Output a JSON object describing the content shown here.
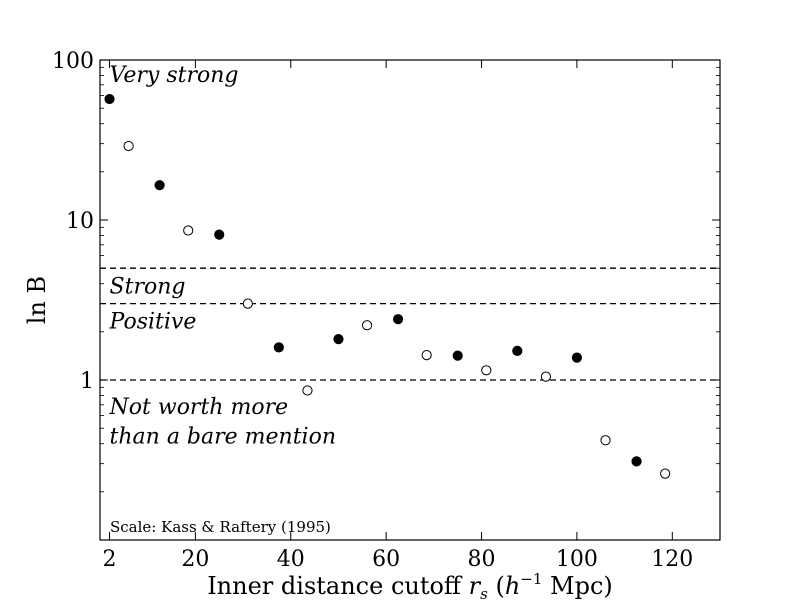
{
  "chart_data": {
    "type": "scatter",
    "title": "",
    "xlabel": "Inner distance cutoff r_s (h^-1 Mpc)",
    "xlabel_parts": {
      "prefix": "Inner distance cutoff ",
      "var": "r",
      "var_sub": "s",
      "paren_open": " (",
      "h": "h",
      "h_exp": "−1",
      "unit": " Mpc)"
    },
    "ylabel": "ln B",
    "xlim": [
      0,
      130
    ],
    "ylim": [
      0.1,
      100
    ],
    "yscale": "log",
    "x_ticks": [
      {
        "value": 2,
        "label": "2"
      },
      {
        "value": 20,
        "label": "20"
      },
      {
        "value": 40,
        "label": "40"
      },
      {
        "value": 60,
        "label": "60"
      },
      {
        "value": 80,
        "label": "80"
      },
      {
        "value": 100,
        "label": "100"
      },
      {
        "value": 120,
        "label": "120"
      }
    ],
    "y_ticks": [
      {
        "value": 1,
        "label": "1"
      },
      {
        "value": 10,
        "label": "10"
      },
      {
        "value": 100,
        "label": "100"
      }
    ],
    "grid": false,
    "series": [
      {
        "name": "filled",
        "marker": "filled-circle",
        "points": [
          {
            "x": 2,
            "y": 57
          },
          {
            "x": 12.5,
            "y": 16.5
          },
          {
            "x": 25,
            "y": 8.1
          },
          {
            "x": 37.5,
            "y": 1.6
          },
          {
            "x": 50,
            "y": 1.8
          },
          {
            "x": 62.5,
            "y": 2.4
          },
          {
            "x": 75,
            "y": 1.42
          },
          {
            "x": 87.5,
            "y": 1.52
          },
          {
            "x": 100,
            "y": 1.38
          },
          {
            "x": 112.5,
            "y": 0.31
          }
        ]
      },
      {
        "name": "open",
        "marker": "open-circle",
        "points": [
          {
            "x": 6,
            "y": 29
          },
          {
            "x": 18.5,
            "y": 8.6
          },
          {
            "x": 31,
            "y": 3.0
          },
          {
            "x": 43.5,
            "y": 0.86
          },
          {
            "x": 56,
            "y": 2.2
          },
          {
            "x": 68.5,
            "y": 1.43
          },
          {
            "x": 81,
            "y": 1.15
          },
          {
            "x": 93.5,
            "y": 1.05
          },
          {
            "x": 106,
            "y": 0.42
          },
          {
            "x": 118.5,
            "y": 0.26
          }
        ]
      }
    ],
    "reference_lines": [
      {
        "y": 5
      },
      {
        "y": 3
      },
      {
        "y": 1
      }
    ],
    "annotations": [
      {
        "text": "Very strong",
        "x": 2,
        "y": 82
      },
      {
        "text": "Strong",
        "x": 2,
        "y": 3.9
      },
      {
        "text": "Positive",
        "x": 2,
        "y": 2.35
      },
      {
        "text": "Not worth more",
        "x": 2,
        "y": 0.69
      },
      {
        "text": "than a bare mention",
        "x": 2,
        "y": 0.45
      }
    ],
    "footnote": "Scale: Kass & Raftery (1995)"
  }
}
